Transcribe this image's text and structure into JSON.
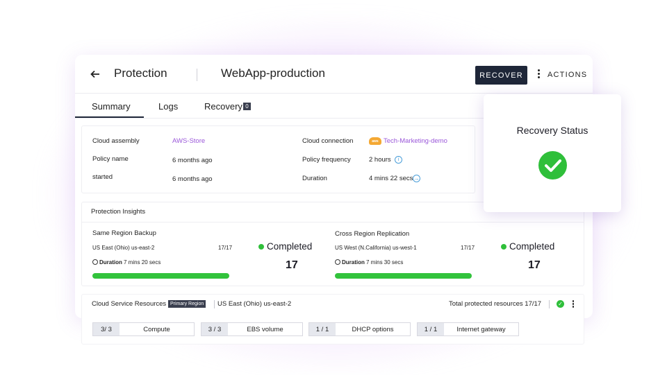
{
  "header": {
    "back_icon": "arrow-left-icon",
    "title": "Protection",
    "subtitle": "WebApp-production",
    "recover_label": "RECOVER",
    "actions_label": "ACTIONS"
  },
  "tabs": [
    {
      "label": "Summary",
      "active": true
    },
    {
      "label": "Logs",
      "active": false
    },
    {
      "label": "Recovery",
      "badge": "0",
      "active": false
    }
  ],
  "summary": {
    "cloud_assembly_label": "Cloud assembly",
    "cloud_assembly_value": "AWS-Store",
    "policy_name_label": "Policy name",
    "policy_name_value": "6 months ago",
    "started_label": "started",
    "started_value": "6 months ago",
    "cloud_connection_label": "Cloud connection",
    "cloud_connection_value": "Tech-Marketing-demo",
    "aws_badge": "aws",
    "policy_frequency_label": "Policy frequency",
    "policy_frequency_value": "2 hours",
    "duration_label": "Duration",
    "duration_value": "4 mins 22 secs"
  },
  "insights": {
    "title": "Protection Insights",
    "same_region": {
      "title": "Same Region Backup",
      "region": "US East (Ohio) us-east-2",
      "count": "17/17",
      "duration_label": "Duration",
      "duration_value": "7 mins 20 secs",
      "status": "Completed",
      "total": "17",
      "progress": 1.0
    },
    "cross_region": {
      "title": "Cross Region Replication",
      "region": "US West (N.California) us-west-1",
      "count": "17/17",
      "duration_label": "Duration",
      "duration_value": "7 mins 30 secs",
      "status": "Completed",
      "total": "17",
      "progress": 1.0
    }
  },
  "resources": {
    "title": "Cloud Service Resources",
    "primary_badge": "Primary Region",
    "region": "US East (Ohio) us-east-2",
    "total_label": "Total protected resources 17/17",
    "items": [
      {
        "count": "3/ 3",
        "name": "Compute"
      },
      {
        "count": "3 / 3",
        "name": "EBS volume"
      },
      {
        "count": "1 / 1",
        "name": "DHCP options"
      },
      {
        "count": "1 / 1",
        "name": "Internet gateway"
      }
    ]
  },
  "recovery_status": {
    "title": "Recovery Status",
    "icon": "check-circle-icon"
  },
  "colors": {
    "accent": "#9a57d9",
    "primary_button": "#1e2638",
    "success": "#2fbf3a"
  }
}
